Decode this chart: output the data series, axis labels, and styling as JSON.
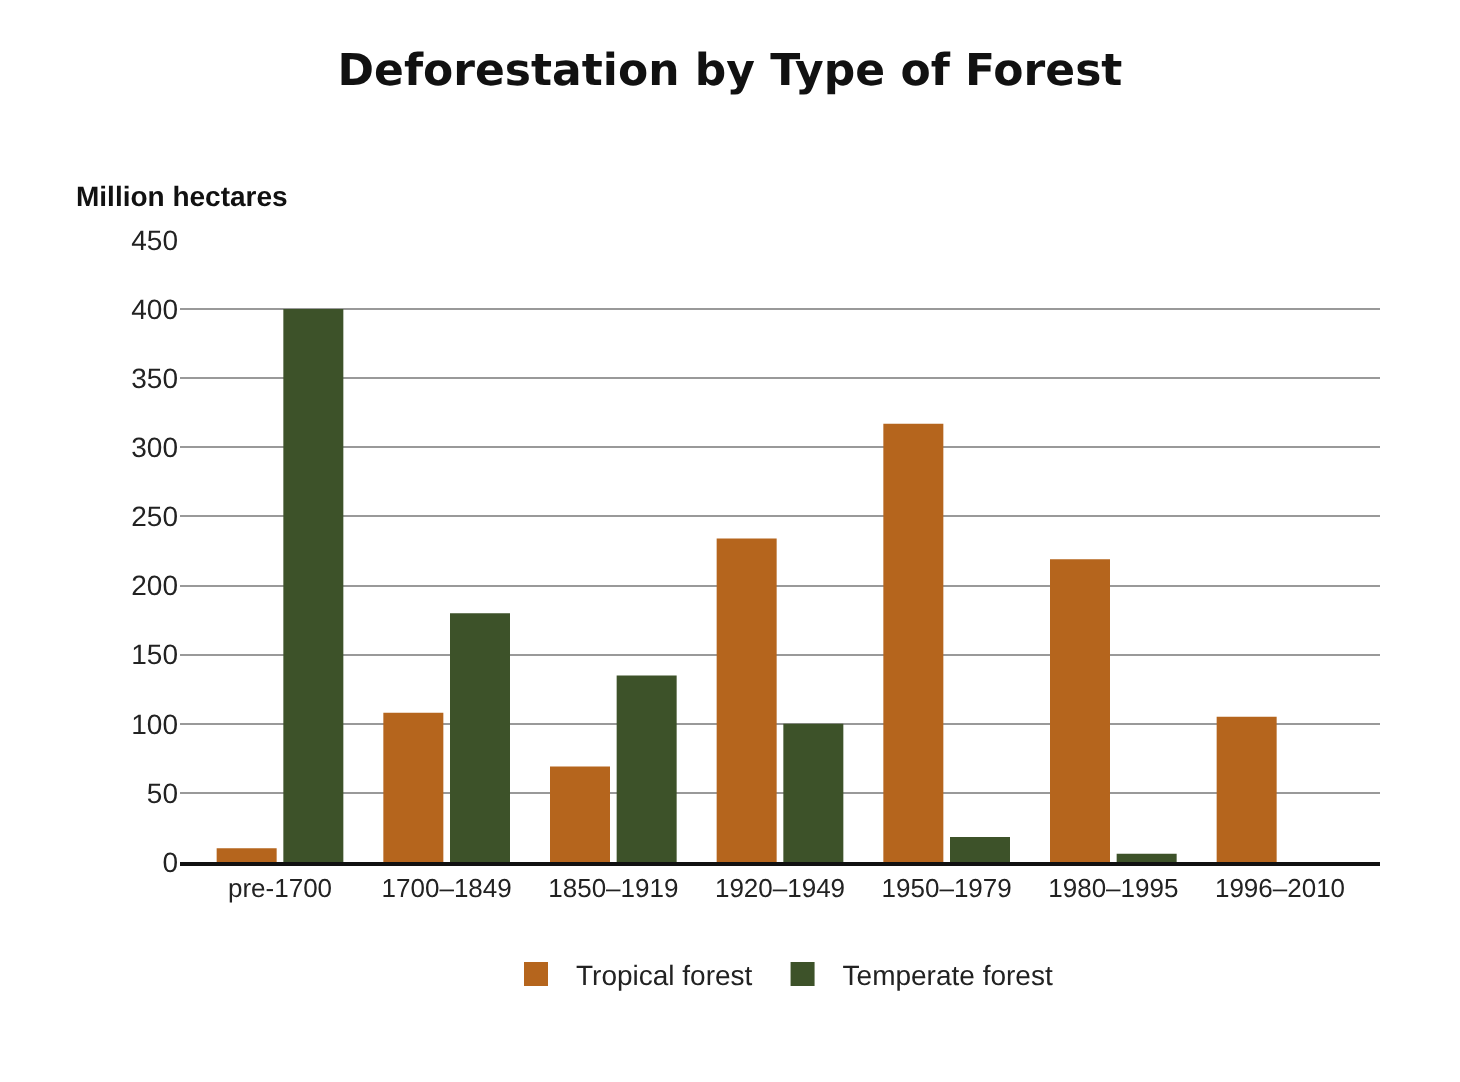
{
  "chart_data": {
    "type": "bar",
    "title": "Deforestation by Type of Forest",
    "ylabel": "Million hectares",
    "categories": [
      "pre-1700",
      "1700–1849",
      "1850–1919",
      "1920–1949",
      "1950–1979",
      "1980–1995",
      "1996–2010"
    ],
    "series": [
      {
        "name": "Tropical forest",
        "color": "#b5651d",
        "values": [
          10,
          108,
          69,
          234,
          317,
          219,
          105
        ]
      },
      {
        "name": "Temperate forest",
        "color": "#3d5229",
        "values": [
          400,
          180,
          135,
          100,
          18,
          6,
          null
        ]
      }
    ],
    "ylim": [
      0,
      450
    ],
    "yticks": [
      0,
      50,
      100,
      150,
      200,
      250,
      300,
      350,
      400,
      450
    ],
    "grid": "y",
    "legend": "bottom"
  }
}
